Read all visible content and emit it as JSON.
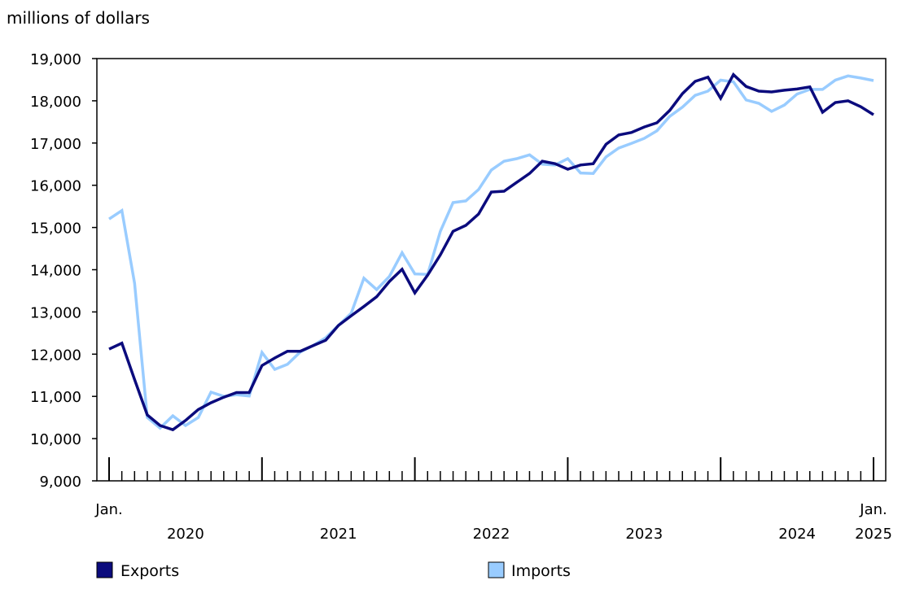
{
  "chart_data": {
    "type": "line",
    "title": "",
    "ylabel": "millions of dollars",
    "xlabel": "",
    "ylim": [
      9000,
      19000
    ],
    "yticks": [
      "9,000",
      "10,000",
      "11,000",
      "12,000",
      "13,000",
      "14,000",
      "15,000",
      "16,000",
      "17,000",
      "18,000",
      "19,000"
    ],
    "ytick_values": [
      9000,
      10000,
      11000,
      12000,
      13000,
      14000,
      15000,
      16000,
      17000,
      18000,
      19000
    ],
    "x_start": "2020-01",
    "x_end": "2025-01",
    "x_edge_labels": [
      "Jan.",
      "Jan."
    ],
    "year_labels": [
      "2020",
      "2021",
      "2022",
      "2023",
      "2024",
      "2025"
    ],
    "grid": false,
    "legend_position": "bottom",
    "series": [
      {
        "name": "Exports",
        "color": "#0b0b7d",
        "values": [
          12120,
          12260,
          11400,
          10560,
          10310,
          10210,
          10430,
          10690,
          10850,
          10980,
          11090,
          11090,
          11730,
          11910,
          12070,
          12070,
          12200,
          12330,
          12680,
          12910,
          13130,
          13360,
          13720,
          14010,
          13450,
          13870,
          14350,
          14910,
          15050,
          15320,
          15840,
          15860,
          16070,
          16280,
          16570,
          16510,
          16380,
          16480,
          16510,
          16970,
          17190,
          17250,
          17380,
          17480,
          17770,
          18170,
          18460,
          18560,
          18060,
          18620,
          18340,
          18230,
          18210,
          18250,
          18280,
          18330,
          17730,
          17960,
          18000,
          17860,
          17670
        ]
      },
      {
        "name": "Imports",
        "color": "#99ccff",
        "values": [
          15200,
          15400,
          13680,
          10500,
          10250,
          10540,
          10310,
          10500,
          11100,
          11000,
          11040,
          11010,
          12040,
          11640,
          11760,
          12050,
          12200,
          12390,
          12680,
          12970,
          13800,
          13530,
          13840,
          14400,
          13900,
          13890,
          14910,
          15590,
          15630,
          15900,
          16360,
          16570,
          16630,
          16720,
          16500,
          16480,
          16630,
          16290,
          16280,
          16670,
          16880,
          16990,
          17110,
          17290,
          17630,
          17850,
          18130,
          18230,
          18490,
          18450,
          18020,
          17940,
          17750,
          17900,
          18160,
          18270,
          18270,
          18490,
          18590,
          18540,
          18480
        ]
      }
    ]
  }
}
